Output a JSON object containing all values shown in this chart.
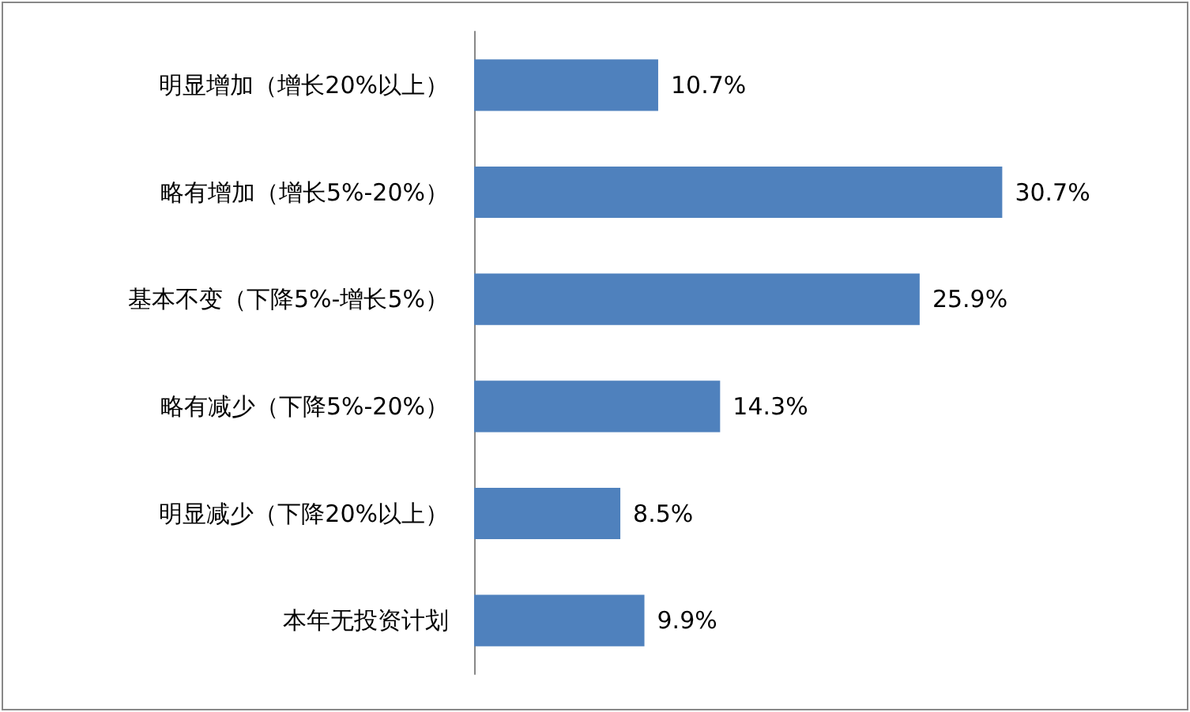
{
  "chart_data": {
    "type": "bar",
    "orientation": "horizontal",
    "categories": [
      "明显增加（增长20%以上）",
      "略有增加（增长5%-20%）",
      "基本不变（下降5%-增长5%）",
      "略有减少（下降5%-20%）",
      "明显减少（下降20%以上）",
      "本年无投资计划"
    ],
    "values": [
      10.7,
      30.7,
      25.9,
      14.3,
      8.5,
      9.9
    ],
    "value_labels": [
      "10.7%",
      "30.7%",
      "25.9%",
      "14.3%",
      "8.5%",
      "9.9%"
    ],
    "color": "#4f81bd",
    "tick_labels": "y"
  }
}
